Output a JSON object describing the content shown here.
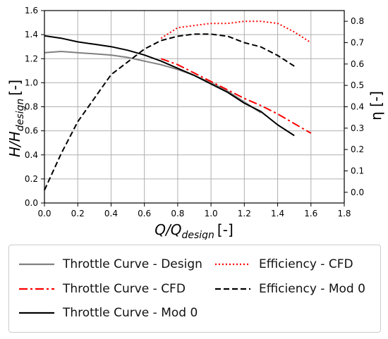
{
  "chart_data": {
    "type": "line",
    "xlabel": "Q/Q",
    "xlabel_sub": "design",
    "xlabel_unit": "[-]",
    "ylabel": "H/H",
    "ylabel_sub": "design",
    "ylabel_unit": "[-]",
    "y2label": "η [-]",
    "xlim": [
      0.0,
      1.8
    ],
    "ylim": [
      0.0,
      1.6
    ],
    "y2lim": [
      -0.05,
      0.85
    ],
    "xticks": [
      "0.0",
      "0.2",
      "0.4",
      "0.6",
      "0.8",
      "1.0",
      "1.2",
      "1.4",
      "1.6",
      "1.8"
    ],
    "yticks": [
      "0.0",
      "0.2",
      "0.4",
      "0.6",
      "0.8",
      "1.0",
      "1.2",
      "1.4",
      "1.6"
    ],
    "y2ticks": [
      "0.0",
      "0.1",
      "0.2",
      "0.3",
      "0.4",
      "0.5",
      "0.6",
      "0.7",
      "0.8"
    ],
    "grid": true,
    "legend_position": "below",
    "series": [
      {
        "name": "Throttle Curve - Design",
        "axis": "left",
        "color": "#808080",
        "dash": "solid",
        "x": [
          0.0,
          0.1,
          0.2,
          0.3,
          0.4,
          0.5,
          0.6,
          0.7,
          0.8,
          0.9,
          1.0,
          1.1,
          1.2,
          1.3
        ],
        "y": [
          1.25,
          1.26,
          1.25,
          1.24,
          1.23,
          1.21,
          1.18,
          1.15,
          1.11,
          1.06,
          1.0,
          0.93,
          0.84,
          0.75
        ]
      },
      {
        "name": "Throttle Curve - CFD",
        "axis": "left",
        "color": "#ff0000",
        "dash": "dashdot",
        "x": [
          0.7,
          0.8,
          0.9,
          1.0,
          1.1,
          1.2,
          1.3,
          1.4,
          1.5,
          1.6
        ],
        "y": [
          1.2,
          1.15,
          1.08,
          1.01,
          0.94,
          0.87,
          0.81,
          0.74,
          0.66,
          0.58
        ]
      },
      {
        "name": "Throttle Curve - Mod 0",
        "axis": "left",
        "color": "#000000",
        "dash": "solid",
        "x": [
          0.0,
          0.1,
          0.2,
          0.3,
          0.4,
          0.5,
          0.6,
          0.7,
          0.8,
          0.9,
          1.0,
          1.1,
          1.2,
          1.3,
          1.4,
          1.5
        ],
        "y": [
          1.39,
          1.37,
          1.34,
          1.32,
          1.3,
          1.27,
          1.23,
          1.18,
          1.12,
          1.06,
          0.99,
          0.92,
          0.83,
          0.76,
          0.65,
          0.56
        ]
      },
      {
        "name": "Efficiency - CFD",
        "axis": "right",
        "color": "#ff0000",
        "dash": "dotted",
        "x": [
          0.7,
          0.8,
          0.9,
          1.0,
          1.1,
          1.2,
          1.3,
          1.4,
          1.5,
          1.6
        ],
        "y": [
          0.72,
          0.77,
          0.78,
          0.79,
          0.79,
          0.8,
          0.8,
          0.79,
          0.75,
          0.7
        ]
      },
      {
        "name": "Efficiency - Mod 0",
        "axis": "right",
        "color": "#000000",
        "dash": "dashed",
        "x": [
          0.0,
          0.1,
          0.2,
          0.3,
          0.4,
          0.5,
          0.6,
          0.7,
          0.8,
          0.9,
          1.0,
          1.1,
          1.2,
          1.3,
          1.4,
          1.5
        ],
        "y": [
          0.01,
          0.18,
          0.33,
          0.44,
          0.55,
          0.61,
          0.67,
          0.71,
          0.73,
          0.74,
          0.74,
          0.73,
          0.7,
          0.68,
          0.64,
          0.59
        ]
      }
    ]
  }
}
